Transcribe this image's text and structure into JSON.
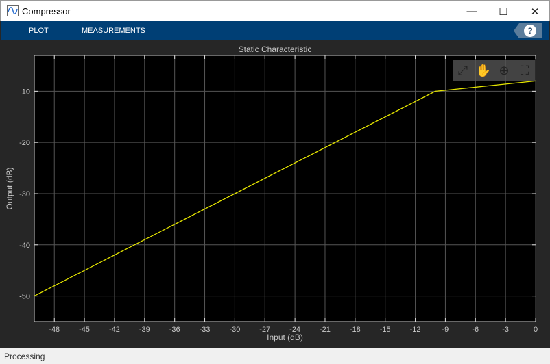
{
  "window": {
    "title": "Compressor",
    "minimize": "—",
    "maximize": "☐",
    "close": "✕"
  },
  "toolstrip": {
    "tabs": [
      "PLOT",
      "MEASUREMENTS"
    ],
    "help": "?"
  },
  "axes_toolbar": [
    {
      "icon": "restore-view-icon",
      "glyph": "⤢"
    },
    {
      "icon": "pan-hand-icon",
      "glyph": "✋"
    },
    {
      "icon": "zoom-in-icon",
      "glyph": "⊕"
    },
    {
      "icon": "fullscreen-icon",
      "glyph": "⛶"
    }
  ],
  "status": "Processing",
  "chart_data": {
    "type": "line",
    "title": "Static Characteristic",
    "xlabel": "Input (dB)",
    "ylabel": "Output (dB)",
    "xlim": [
      -50,
      0
    ],
    "ylim": [
      -55,
      -3
    ],
    "xticks": [
      -48,
      -45,
      -42,
      -39,
      -36,
      -33,
      -30,
      -27,
      -24,
      -21,
      -18,
      -15,
      -12,
      -9,
      -6,
      -3,
      0
    ],
    "yticks": [
      -50,
      -40,
      -30,
      -20,
      -10
    ],
    "grid": true,
    "background": "#000000",
    "line_color": "#e6e600",
    "series": [
      {
        "x": [
          -50,
          -10,
          0
        ],
        "y": [
          -50,
          -10,
          -8
        ]
      }
    ]
  }
}
